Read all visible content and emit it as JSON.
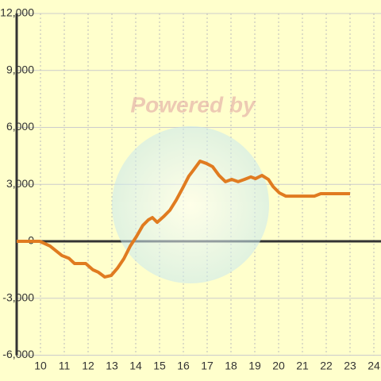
{
  "chart_data": {
    "type": "line",
    "watermark": "Powered by",
    "x": [
      9,
      9.97,
      10.4,
      10.9,
      11.2,
      11.43,
      11.9,
      12.2,
      12.43,
      12.7,
      12.97,
      13.23,
      13.5,
      13.77,
      14.03,
      14.3,
      14.53,
      14.7,
      14.9,
      15.17,
      15.43,
      15.7,
      15.97,
      16.23,
      16.43,
      16.7,
      16.97,
      17.23,
      17.5,
      17.77,
      18.03,
      18.3,
      18.57,
      18.83,
      19.03,
      19.3,
      19.57,
      19.77,
      20.03,
      20.3,
      20.83,
      21.5,
      21.77,
      22.3,
      23
    ],
    "series": [
      {
        "color": "#e07b20",
        "values": [
          0,
          0,
          -250,
          -750,
          -900,
          -1170,
          -1170,
          -1500,
          -1630,
          -1880,
          -1800,
          -1420,
          -920,
          -250,
          250,
          840,
          1130,
          1250,
          1000,
          1300,
          1630,
          2170,
          2800,
          3430,
          3760,
          4220,
          4100,
          3930,
          3470,
          3140,
          3260,
          3140,
          3260,
          3390,
          3300,
          3470,
          3260,
          2880,
          2550,
          2380,
          2380,
          2380,
          2510,
          2510,
          2510
        ]
      }
    ],
    "xlim": [
      9,
      24.3
    ],
    "xticks": [
      10,
      11,
      12,
      13,
      14,
      15,
      16,
      17,
      18,
      19,
      20,
      21,
      22,
      23,
      24
    ],
    "ylim": [
      -6000,
      12000
    ],
    "yticks": [
      {
        "value": -6000,
        "label": "-6,000"
      },
      {
        "value": -3000,
        "label": "-3,000"
      },
      0,
      {
        "value": 3000,
        "label": "3,000"
      },
      {
        "value": 6000,
        "label": "6,000"
      },
      {
        "value": 9000,
        "label": "9,000"
      },
      {
        "value": 12000,
        "label": "12,000"
      }
    ],
    "grid": true
  }
}
